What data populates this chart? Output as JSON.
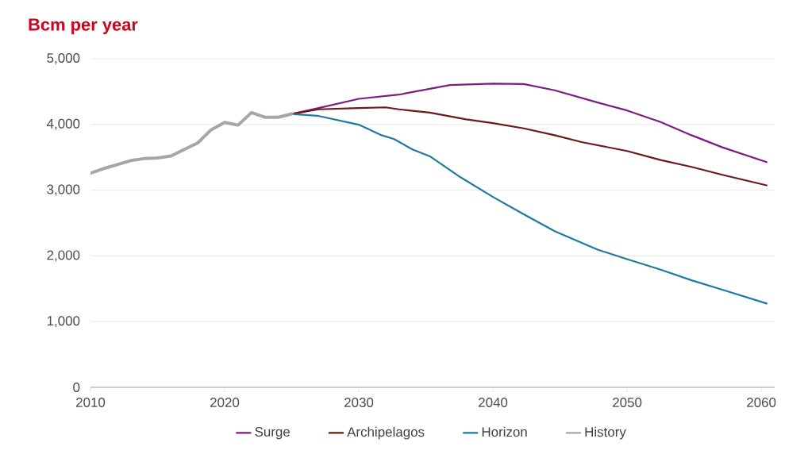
{
  "chart_data": {
    "type": "line",
    "title": "Bcm per year",
    "xlim": [
      2010,
      2061
    ],
    "xticks": [
      2010,
      2020,
      2030,
      2040,
      2050,
      2060
    ],
    "ylim": [
      0,
      5000
    ],
    "yticks": [
      0,
      {
        "value": 1000,
        "label": "1,000"
      },
      {
        "value": 2000,
        "label": "2,000"
      },
      {
        "value": 3000,
        "label": "3,000"
      },
      {
        "value": 4000,
        "label": "4,000"
      },
      {
        "value": 5000,
        "label": "5,000"
      }
    ],
    "grid": "y",
    "legend": "bottom",
    "marker": "none",
    "line_style": "solid",
    "series": [
      {
        "name": "Surge",
        "color": "#7b1f7e",
        "x": [
          2025,
          2027,
          2030,
          2033,
          2036.8,
          2040,
          2042.3,
          2044.6,
          2047.8,
          2050,
          2052.5,
          2054.8,
          2057.1,
          2060.4
        ],
        "values": [
          4160,
          4250,
          4390,
          4454,
          4600,
          4620,
          4615,
          4520,
          4334,
          4213,
          4037,
          3836,
          3652,
          3427
        ]
      },
      {
        "name": "Archipelagos",
        "color": "#6b1a1a",
        "x": [
          2025,
          2027,
          2030,
          2032,
          2033,
          2035.3,
          2038,
          2040,
          2042.3,
          2044.6,
          2046.6,
          2050,
          2052.5,
          2054.8,
          2057.1,
          2060.4
        ],
        "values": [
          4160,
          4230,
          4250,
          4260,
          4230,
          4181,
          4077,
          4021,
          3940,
          3836,
          3732,
          3596,
          3459,
          3355,
          3234,
          3074
        ]
      },
      {
        "name": "Horizon",
        "color": "#1f7a9e",
        "x": [
          2025,
          2026.9,
          2030,
          2031.7,
          2032.6,
          2034,
          2035.3,
          2037.6,
          2040,
          2042.3,
          2044.6,
          2047.8,
          2050,
          2052.5,
          2054.8,
          2057.1,
          2060.4
        ],
        "values": [
          4160,
          4133,
          3997,
          3836,
          3780,
          3620,
          3515,
          3194,
          2897,
          2632,
          2376,
          2095,
          1950,
          1790,
          1629,
          1485,
          1276
        ]
      },
      {
        "name": "History",
        "color": "#a6a6a6",
        "x": [
          2010,
          2011,
          2012,
          2013,
          2014,
          2015,
          2016,
          2017,
          2018,
          2019,
          2020,
          2021,
          2022,
          2023,
          2024,
          2025
        ],
        "values": [
          3260,
          3330,
          3390,
          3450,
          3480,
          3490,
          3520,
          3620,
          3720,
          3920,
          4030,
          3990,
          4180,
          4110,
          4110,
          4160
        ]
      }
    ]
  }
}
